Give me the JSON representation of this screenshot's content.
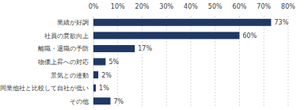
{
  "chart_data": {
    "type": "bar",
    "orientation": "horizontal",
    "categories": [
      "業績が好調",
      "社員の意欲向上",
      "離職・退職の予防",
      "物価上昇への対応",
      "景気との連動",
      "同業他社と比較して自社が低い",
      "その他"
    ],
    "values": [
      73,
      60,
      17,
      5,
      2,
      1,
      7
    ],
    "value_labels": [
      "73%",
      "60%",
      "17%",
      "5%",
      "2%",
      "1%",
      "7%"
    ],
    "color": "#1f3864",
    "xlim": [
      0,
      80
    ],
    "xticks": [
      {
        "value": 0,
        "label": "0%"
      },
      {
        "value": 10,
        "label": "10%"
      },
      {
        "value": 20,
        "label": "20%"
      },
      {
        "value": 30,
        "label": "30%"
      },
      {
        "value": 40,
        "label": "40%"
      },
      {
        "value": 50,
        "label": "50%"
      },
      {
        "value": 60,
        "label": "60%"
      },
      {
        "value": 70,
        "label": "70%"
      },
      {
        "value": 80,
        "label": "80%"
      }
    ],
    "grid": true,
    "data_labels": true
  }
}
